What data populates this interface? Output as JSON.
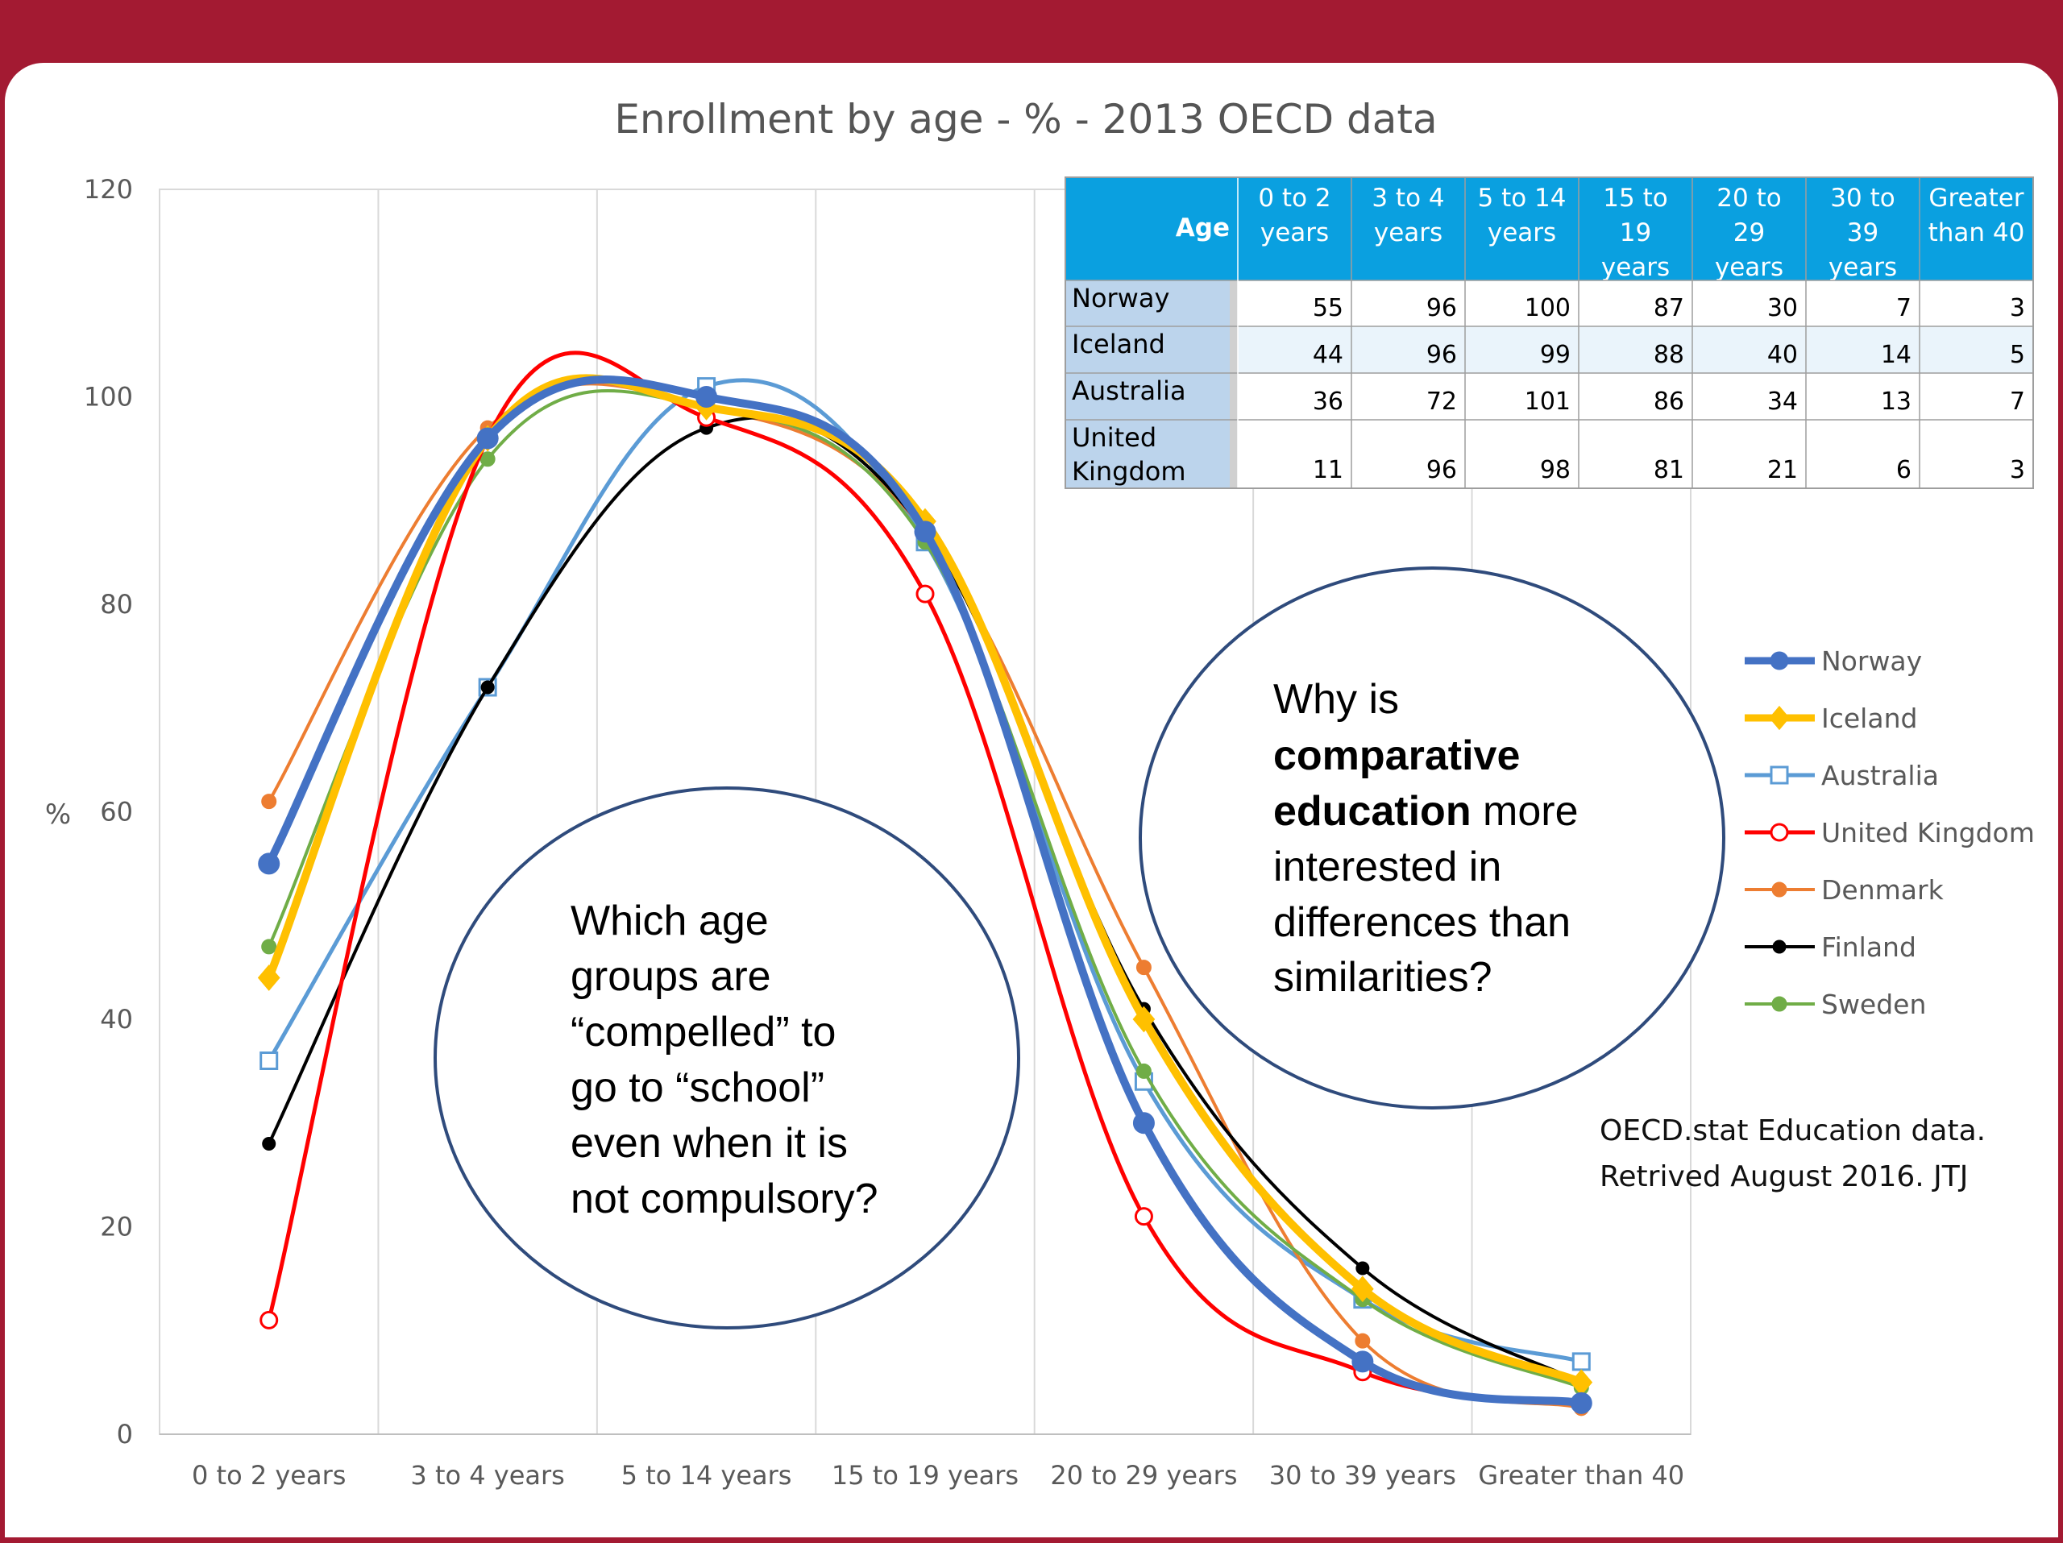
{
  "chart_data": {
    "type": "line",
    "title": "Enrollment  by age - % - 2013 OECD data",
    "ylabel": "%",
    "ylim": [
      0,
      120
    ],
    "yticks": [
      0,
      20,
      40,
      60,
      80,
      100,
      120
    ],
    "categories": [
      "0 to 2 years",
      "3 to 4 years",
      "5 to 14 years",
      "15 to 19 years",
      "20 to 29 years",
      "30 to 39 years",
      "Greater than 40"
    ],
    "grid": "vertical",
    "legend_position": "right",
    "series": [
      {
        "name": "Norway",
        "values": [
          55,
          96,
          100,
          87,
          30,
          7,
          3
        ],
        "color": "#4472c4",
        "marker": "circle-filled"
      },
      {
        "name": "Iceland",
        "values": [
          44,
          96,
          99,
          88,
          40,
          14,
          5
        ],
        "color": "#ffc000",
        "marker": "diamond"
      },
      {
        "name": "Australia",
        "values": [
          36,
          72,
          101,
          86,
          34,
          13,
          7
        ],
        "color": "#5b9bd5",
        "marker": "square-open"
      },
      {
        "name": "United Kingdom",
        "values": [
          11,
          96,
          98,
          81,
          21,
          6,
          3
        ],
        "color": "#ff0000",
        "marker": "circle-open"
      },
      {
        "name": "Denmark",
        "values": [
          61,
          97,
          99,
          87,
          45,
          9,
          2.5
        ],
        "color": "#ed7d31",
        "marker": "circle-filled"
      },
      {
        "name": "Finland",
        "values": [
          28,
          72,
          97,
          87,
          41,
          16,
          5
        ],
        "color": "#000000",
        "marker": "circle-filled"
      },
      {
        "name": "Sweden",
        "values": [
          47,
          94,
          99,
          86,
          35,
          13,
          4.5
        ],
        "color": "#70ad47",
        "marker": "circle-filled"
      }
    ]
  },
  "table": {
    "corner_label": "Age",
    "columns": [
      [
        "0 to 2",
        "years"
      ],
      [
        "3 to 4",
        "years"
      ],
      [
        "5 to 14",
        "years"
      ],
      [
        "15 to",
        "19",
        "years"
      ],
      [
        "20 to",
        "29",
        "years"
      ],
      [
        "30 to",
        "39",
        "years"
      ],
      [
        "Greater",
        "than 40"
      ]
    ],
    "rows": [
      {
        "label": [
          "Norway"
        ],
        "values": [
          "55",
          "96",
          "100",
          "87",
          "30",
          "7",
          "3"
        ]
      },
      {
        "label": [
          "Iceland"
        ],
        "values": [
          "44",
          "96",
          "99",
          "88",
          "40",
          "14",
          "5"
        ]
      },
      {
        "label": [
          "Australia"
        ],
        "values": [
          "36",
          "72",
          "101",
          "86",
          "34",
          "13",
          "7"
        ]
      },
      {
        "label": [
          "United",
          "Kingdom"
        ],
        "values": [
          "11",
          "96",
          "98",
          "81",
          "21",
          "6",
          "3"
        ]
      }
    ]
  },
  "bubbles": {
    "right": [
      "Why is",
      "comparative",
      "education more",
      "interested in",
      "differences than",
      "similarities?"
    ],
    "left": [
      "Which age",
      "groups are",
      "“compelled” to",
      "go to “school”",
      "even when it is",
      "not compulsory?"
    ]
  },
  "source": [
    "OECD.stat Education data.",
    "Retrived August  2016. JTJ"
  ],
  "colors": {
    "banner": "#a31a32",
    "table_header": "#0aa0e0",
    "row_label_bg": "#bcd4ec"
  }
}
